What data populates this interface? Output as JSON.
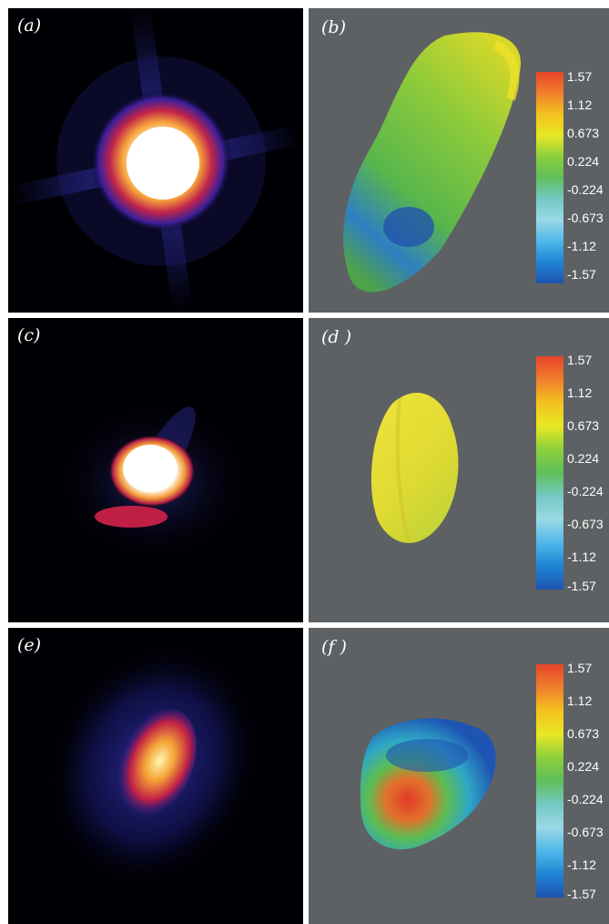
{
  "figure": {
    "panels": [
      {
        "id": "a",
        "label": "(a)",
        "kind": "diffraction-pattern"
      },
      {
        "id": "b",
        "label": "(b)",
        "kind": "3d-reconstruction"
      },
      {
        "id": "c",
        "label": "(c)",
        "kind": "diffraction-pattern"
      },
      {
        "id": "d",
        "label": "(d )",
        "kind": "3d-reconstruction"
      },
      {
        "id": "e",
        "label": "(e)",
        "kind": "diffraction-pattern"
      },
      {
        "id": "f",
        "label": "(f )",
        "kind": "3d-reconstruction"
      }
    ],
    "colorbar": {
      "ticks": [
        "1.57",
        "1.12",
        "0.673",
        "0.224",
        "-0.224",
        "-0.673",
        "-1.12",
        "-1.57"
      ],
      "colors": [
        "#e8442a",
        "#f07f2b",
        "#f4c21f",
        "#e8e824",
        "#8ccf3c",
        "#5fbf5a",
        "#74c9c3",
        "#9ad8e6",
        "#4fb8ea",
        "#1f83d4",
        "#1d54b0"
      ]
    },
    "colors": {
      "background_grey": "#5d6163",
      "diffraction_background": "#000004",
      "divider": "#ffffff"
    }
  }
}
